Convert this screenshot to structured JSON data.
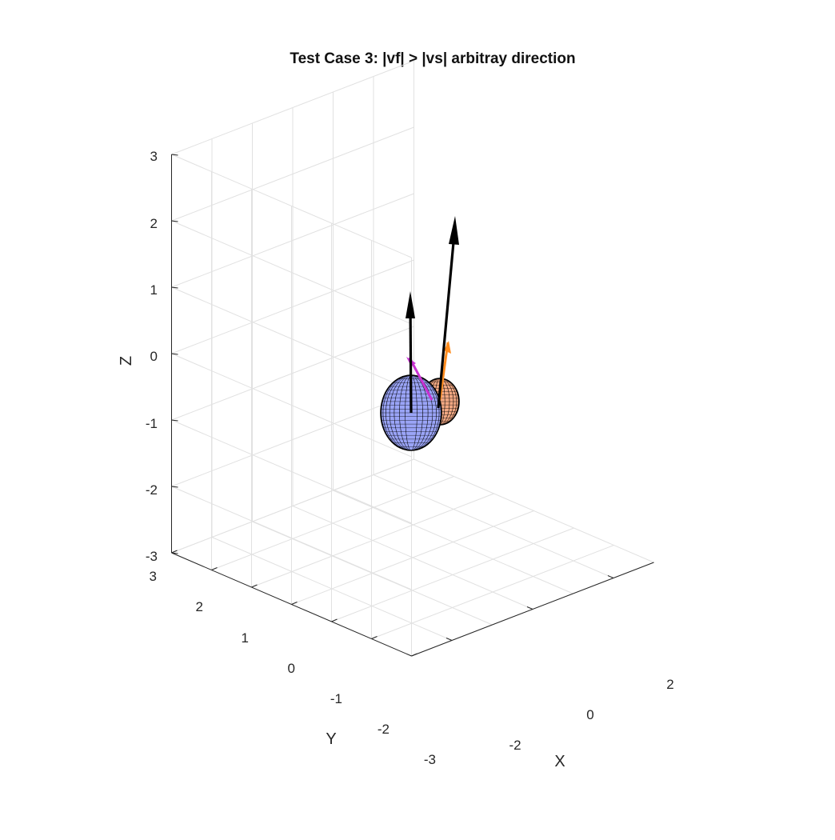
{
  "chart_data": {
    "type": "3d-surface-quiver",
    "title": "Test Case 3: |vf| > |vs| arbitray direction",
    "xlabel": "X",
    "ylabel": "Y",
    "zlabel": "Z",
    "xlim": [
      -3,
      3
    ],
    "ylim": [
      -3,
      3
    ],
    "zlim": [
      -3,
      3
    ],
    "x_tick_labels": [
      "-2",
      "0",
      "2"
    ],
    "y_tick_labels": [
      "3",
      "2",
      "1",
      "0",
      "-1",
      "-2",
      "-3"
    ],
    "z_tick_labels": [
      "3",
      "2",
      "1",
      "0",
      "-1",
      "-2",
      "-3"
    ],
    "grid": true,
    "colors": {
      "large_ellipsoid": "#9aa4f7",
      "small_ellipsoid": "#f2a883",
      "mesh": "#000000",
      "vector": "#000000",
      "vector_magenta": "#c832d2",
      "vector_orange": "#ff8c1e",
      "grid": "#e1e1e1",
      "axis": "#262626"
    }
  }
}
